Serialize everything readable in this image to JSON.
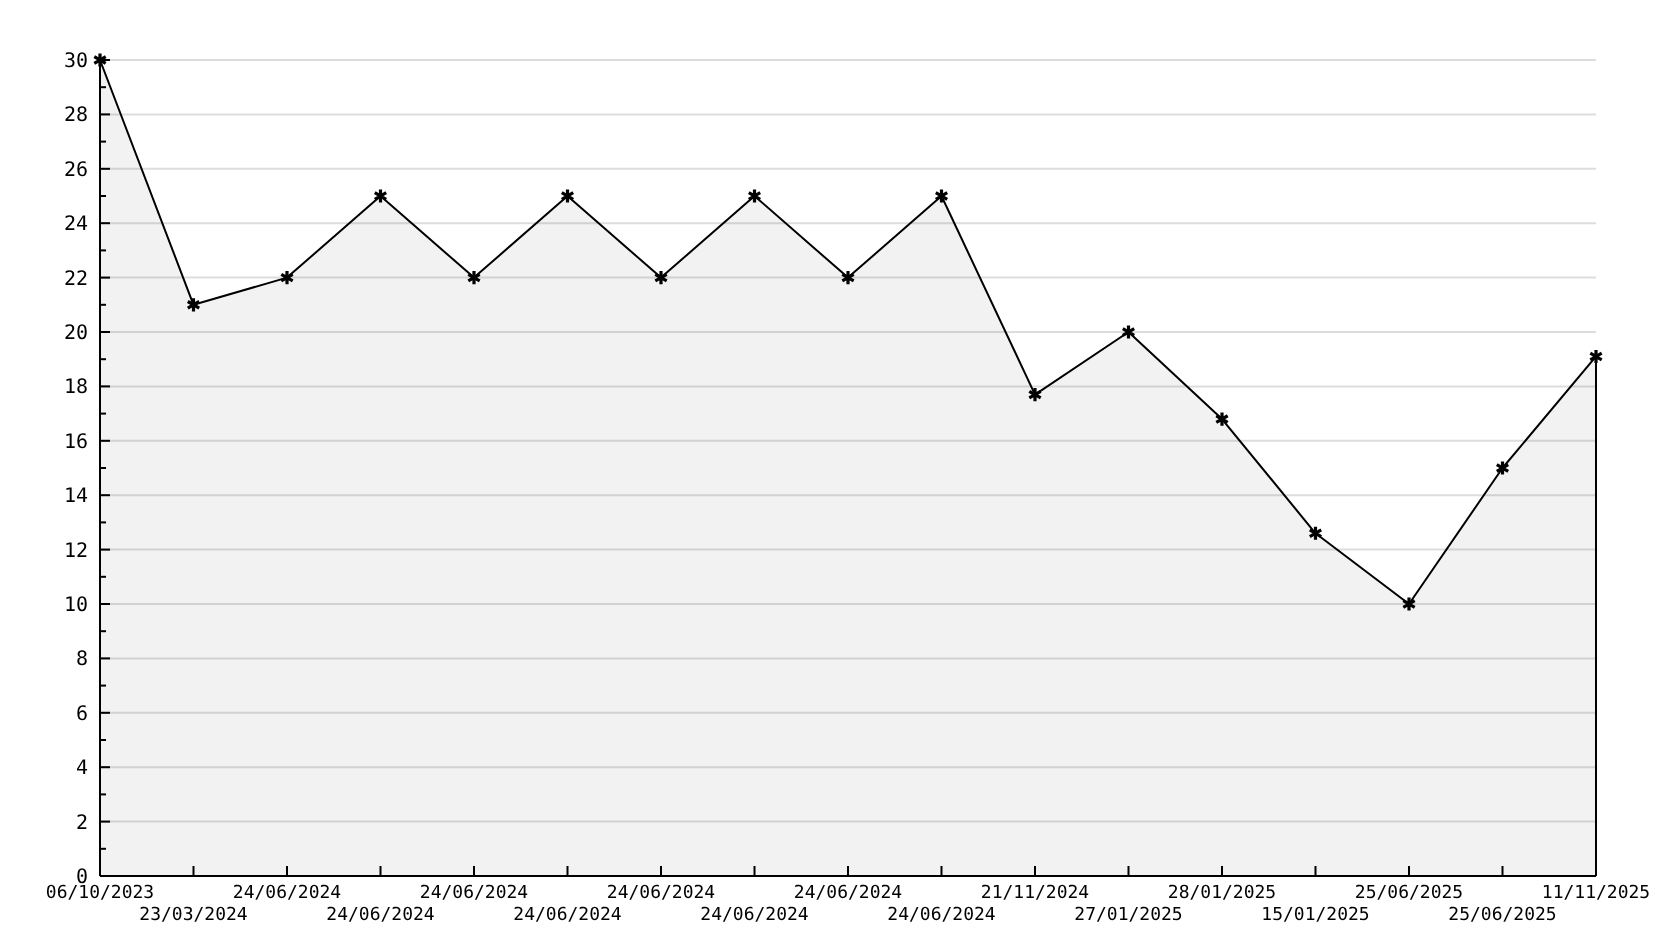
{
  "chart_data": {
    "type": "area",
    "categories": [
      "06/10/2023",
      "23/03/2024",
      "24/06/2024",
      "24/06/2024",
      "24/06/2024",
      "24/06/2024",
      "24/06/2024",
      "24/06/2024",
      "24/06/2024",
      "24/06/2024",
      "21/11/2024",
      "27/01/2025",
      "28/01/2025",
      "15/01/2025",
      "25/06/2025",
      "25/06/2025",
      "11/11/2025"
    ],
    "series": [
      {
        "color": "#000000",
        "values": [
          30,
          21,
          22,
          25,
          22,
          25,
          22,
          25,
          22,
          25,
          17.7,
          20,
          16.8,
          12.6,
          10,
          15,
          19.1
        ]
      }
    ],
    "ylim": [
      0,
      30
    ],
    "yticks": [
      0,
      2,
      4,
      6,
      8,
      10,
      12,
      14,
      16,
      18,
      20,
      22,
      24,
      26,
      28,
      30
    ],
    "grid": "y",
    "marker": "cross",
    "line_style": "solid"
  }
}
